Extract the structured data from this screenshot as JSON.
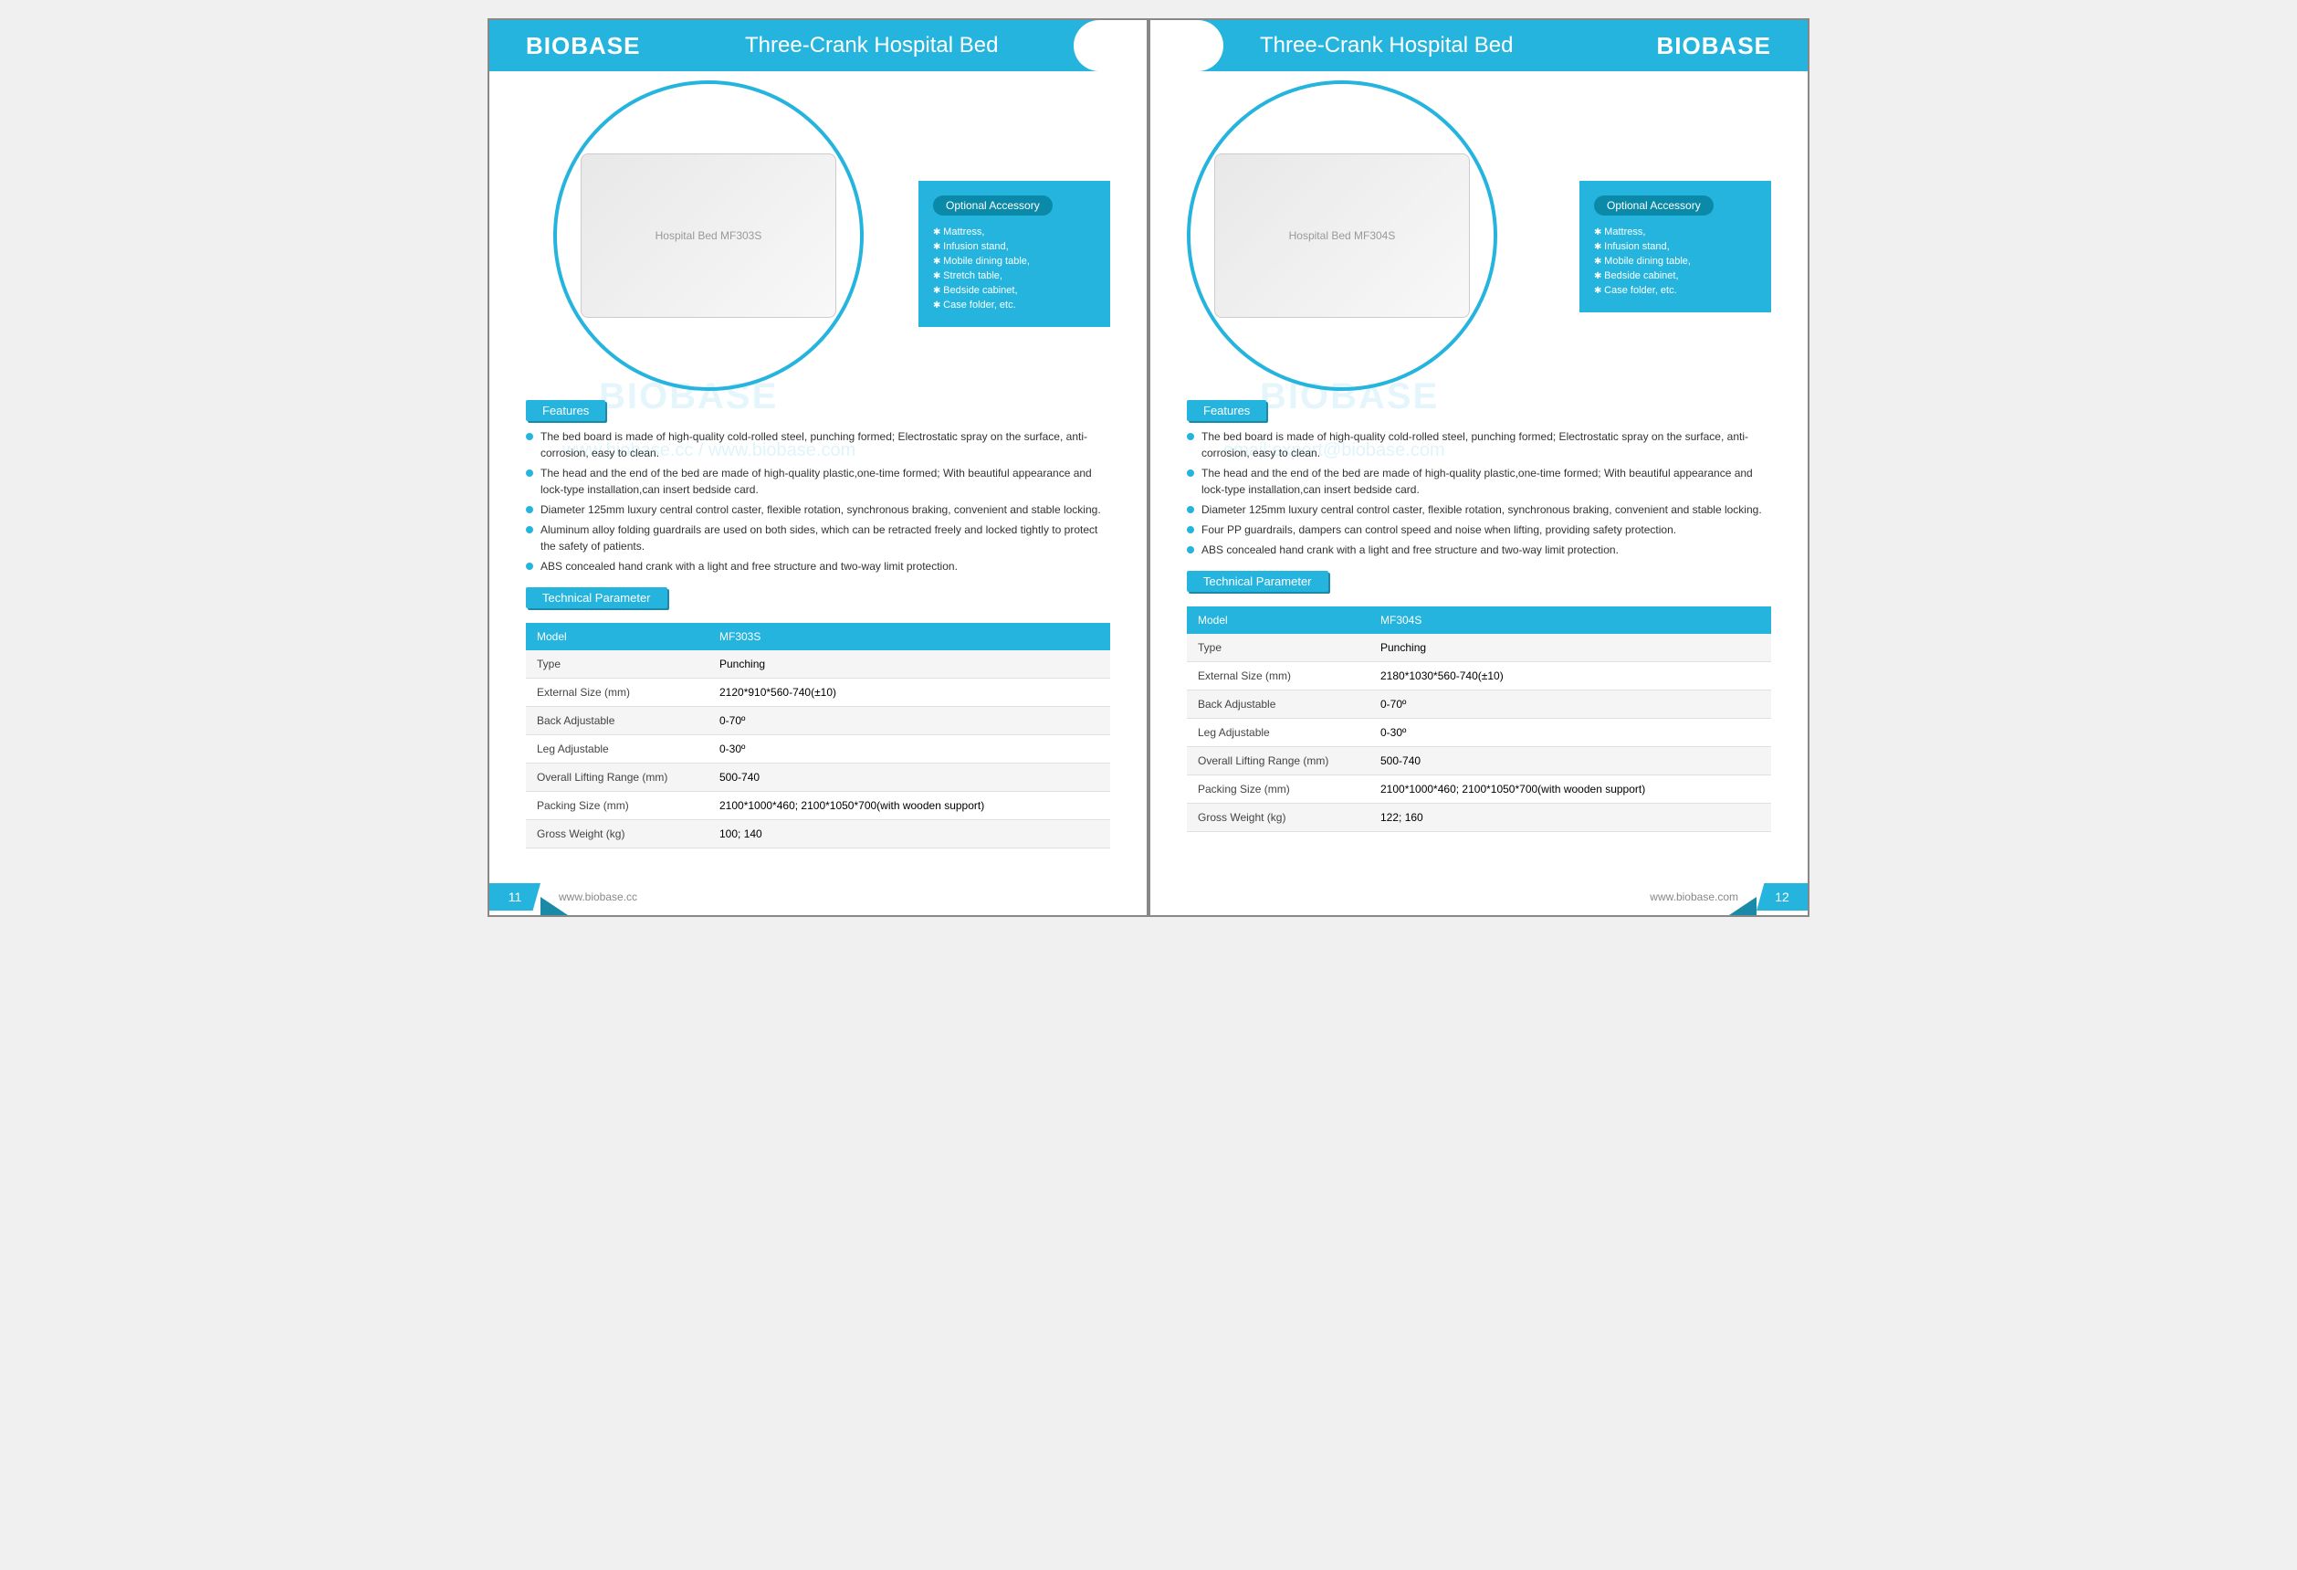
{
  "brand": "BIOBASE",
  "colors": {
    "primary": "#25b4de",
    "accent": "#1a8aa8",
    "watermark": "rgba(37,180,222,0.12)"
  },
  "left": {
    "title": "Three-Crank Hospital Bed",
    "accessory_title": "Optional Accessory",
    "accessories": [
      "Mattress,",
      "Infusion stand,",
      "Mobile dining table,",
      "Stretch table,",
      "Bedside cabinet,",
      "Case folder, etc."
    ],
    "features_label": "Features",
    "features": [
      "The bed board is made of high-quality cold-rolled steel, punching formed; Electrostatic spray on the surface, anti-corrosion, easy to clean.",
      "The head and the end of the bed are made of high-quality plastic,one-time formed; With  beautiful appearance and lock-type installation,can insert bedside card.",
      "Diameter 125mm luxury central control caster, flexible rotation, synchronous braking, convenient and stable locking.",
      "Aluminum alloy folding guardrails are used on both sides, which can be retracted freely and locked tightly to protect the safety of patients.",
      "ABS concealed hand crank with a light and free structure and two-way limit protection."
    ],
    "tech_label": "Technical Parameter",
    "table": {
      "header": [
        "Model",
        "MF303S"
      ],
      "rows": [
        [
          "Type",
          "Punching"
        ],
        [
          "External Size (mm)",
          "2120*910*560-740(±10)"
        ],
        [
          "Back Adjustable",
          "0-70º"
        ],
        [
          "Leg Adjustable",
          "0-30º"
        ],
        [
          "Overall Lifting Range (mm)",
          "500-740"
        ],
        [
          "Packing Size (mm)",
          "2100*1000*460; 2100*1050*700(with wooden support)"
        ],
        [
          "Gross Weight (kg)",
          "100; 140"
        ]
      ]
    },
    "page_num": "11",
    "url": "www.biobase.cc",
    "watermark1": "BIOBASE",
    "watermark2": "www.biobase.cc / www.biobase.com"
  },
  "right": {
    "title": "Three-Crank Hospital Bed",
    "accessory_title": "Optional Accessory",
    "accessories": [
      "Mattress,",
      "Infusion stand,",
      "Mobile dining table,",
      "Bedside cabinet,",
      "Case folder, etc."
    ],
    "features_label": "Features",
    "features": [
      "The bed board is made of high-quality cold-rolled steel, punching formed; Electrostatic spray on the surface, anti-corrosion, easy to clean.",
      "The head and the end of the bed are made of high-quality plastic,one-time formed; With  beautiful appearance and lock-type installation,can insert bedside card.",
      "Diameter 125mm luxury central control caster, flexible rotation, synchronous braking, convenient and stable locking.",
      "Four PP guardrails, dampers can control speed and noise when lifting, providing safety protection.",
      "ABS concealed hand crank with a light and free structure and two-way limit protection."
    ],
    "tech_label": "Technical Parameter",
    "table": {
      "header": [
        "Model",
        "MF304S"
      ],
      "rows": [
        [
          "Type",
          "Punching"
        ],
        [
          "External Size (mm)",
          "2180*1030*560-740(±10)"
        ],
        [
          "Back Adjustable",
          "0-70º"
        ],
        [
          "Leg Adjustable",
          "0-30º"
        ],
        [
          "Overall Lifting Range (mm)",
          "500-740"
        ],
        [
          "Packing Size (mm)",
          "2100*1000*460; 2100*1050*700(with wooden support)"
        ],
        [
          "Gross Weight (kg)",
          "122; 160"
        ]
      ]
    },
    "page_num": "12",
    "url": "www.biobase.com",
    "watermark1": "BIOBASE",
    "watermark2": "email:export@biobase.com"
  }
}
